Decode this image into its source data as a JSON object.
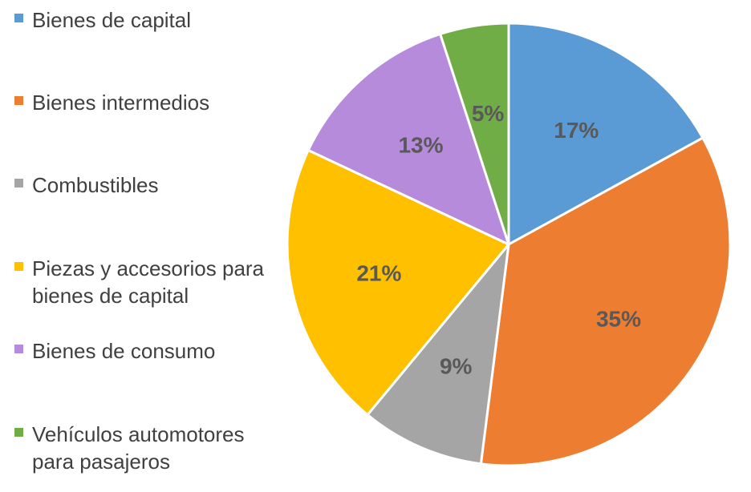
{
  "chart_data": {
    "type": "pie",
    "categories": [
      "Bienes de capital",
      "Bienes intermedios",
      "Combustibles",
      "Piezas y accesorios para bienes de capital",
      "Bienes de consumo",
      "Vehículos automotores para pasajeros"
    ],
    "legend_labels": [
      "Bienes de capital",
      "Bienes intermedios",
      "Combustibles",
      "Piezas y accesorios para\nbienes de capital",
      "Bienes de consumo",
      "Vehículos automotores\npara pasajeros"
    ],
    "values": [
      17,
      35,
      9,
      21,
      13,
      5
    ],
    "data_labels": [
      "17%",
      "35%",
      "9%",
      "21%",
      "13%",
      "5%"
    ],
    "colors": [
      "#5B9BD5",
      "#ED7D31",
      "#A5A5A5",
      "#FFC000",
      "#B68BDB",
      "#70AD47"
    ],
    "legend_position": "left",
    "start_angle": "top",
    "direction": "clockwise"
  }
}
